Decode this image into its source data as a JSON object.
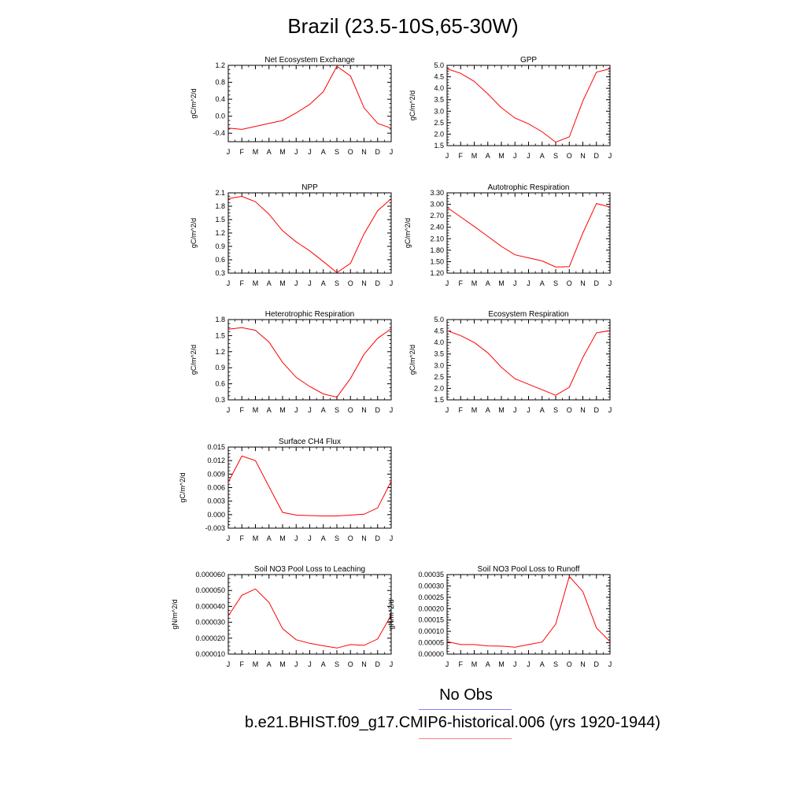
{
  "title": "Brazil (23.5-10S,65-30W)",
  "legend": {
    "obs_label": "No Obs",
    "obs_color": "#8080ff",
    "case_label": "b.e21.BHIST.f09_g17.CMIP6-historical.006 (yrs 1920-1944)",
    "case_color": "#ff8080"
  },
  "line_color": "#ff0000",
  "months": [
    "J",
    "F",
    "M",
    "A",
    "M",
    "J",
    "J",
    "A",
    "S",
    "O",
    "N",
    "D",
    "J"
  ],
  "chart_data": [
    {
      "type": "line",
      "title": "Net Ecosystem Exchange",
      "ylabel": "gC/m^2/d",
      "ylim": [
        -0.6,
        1.2
      ],
      "yticks": [
        -0.4,
        0.0,
        0.4,
        0.8,
        1.2
      ],
      "ytick_labels": [
        "-0.4",
        "0.0",
        "0.4",
        "0.8",
        "1.2"
      ],
      "values": [
        -0.28,
        -0.31,
        -0.24,
        -0.17,
        -0.1,
        0.08,
        0.28,
        0.58,
        1.18,
        0.95,
        0.2,
        -0.17,
        -0.28
      ]
    },
    {
      "type": "line",
      "title": "GPP",
      "ylabel": "gC/m^2/d",
      "ylim": [
        1.5,
        5.0
      ],
      "yticks": [
        1.5,
        2.0,
        2.5,
        3.0,
        3.5,
        4.0,
        4.5,
        5.0
      ],
      "ytick_labels": [
        "1.5",
        "2.0",
        "2.5",
        "3.0",
        "3.5",
        "4.0",
        "4.5",
        "5.0"
      ],
      "values": [
        4.85,
        4.65,
        4.3,
        3.75,
        3.15,
        2.7,
        2.45,
        2.1,
        1.65,
        1.88,
        3.45,
        4.7,
        4.85
      ]
    },
    {
      "type": "line",
      "title": "NPP",
      "ylabel": "gC/m^2/d",
      "ylim": [
        0.3,
        2.1
      ],
      "yticks": [
        0.3,
        0.6,
        0.9,
        1.2,
        1.5,
        1.8,
        2.1
      ],
      "ytick_labels": [
        "0.3",
        "0.6",
        "0.9",
        "1.2",
        "1.5",
        "1.8",
        "2.1"
      ],
      "values": [
        1.97,
        2.02,
        1.9,
        1.62,
        1.25,
        1.0,
        0.8,
        0.56,
        0.31,
        0.52,
        1.18,
        1.7,
        1.97
      ]
    },
    {
      "type": "line",
      "title": "Autotrophic Respiration",
      "ylabel": "gC/m^2/d",
      "ylim": [
        1.2,
        3.3
      ],
      "yticks": [
        1.2,
        1.5,
        1.8,
        2.1,
        2.4,
        2.7,
        3.0,
        3.3
      ],
      "ytick_labels": [
        "1.20",
        "1.50",
        "1.80",
        "2.10",
        "2.40",
        "2.70",
        "3.00",
        "3.30"
      ],
      "values": [
        2.92,
        2.67,
        2.42,
        2.16,
        1.9,
        1.68,
        1.6,
        1.52,
        1.36,
        1.37,
        2.25,
        3.02,
        2.93
      ]
    },
    {
      "type": "line",
      "title": "Heterotrophic Respiration",
      "ylabel": "gC/m^2/d",
      "ylim": [
        0.3,
        1.8
      ],
      "yticks": [
        0.3,
        0.6,
        0.9,
        1.2,
        1.5,
        1.8
      ],
      "ytick_labels": [
        "0.3",
        "0.6",
        "0.9",
        "1.2",
        "1.5",
        "1.8"
      ],
      "values": [
        1.62,
        1.65,
        1.6,
        1.38,
        1.0,
        0.72,
        0.55,
        0.41,
        0.35,
        0.7,
        1.15,
        1.45,
        1.63
      ]
    },
    {
      "type": "line",
      "title": "Ecosystem Respiration",
      "ylabel": "gC/m^2/d",
      "ylim": [
        1.5,
        5.0
      ],
      "yticks": [
        1.5,
        2.0,
        2.5,
        3.0,
        3.5,
        4.0,
        4.5,
        5.0
      ],
      "ytick_labels": [
        "1.5",
        "2.0",
        "2.5",
        "3.0",
        "3.5",
        "4.0",
        "4.5",
        "5.0"
      ],
      "values": [
        4.52,
        4.3,
        4.0,
        3.55,
        2.92,
        2.42,
        2.18,
        1.94,
        1.7,
        2.05,
        3.35,
        4.42,
        4.52
      ]
    },
    {
      "type": "line",
      "title": "Surface CH4 Flux",
      "ylabel": "gC/m^2/d",
      "ylim": [
        -0.003,
        0.015
      ],
      "yticks": [
        -0.003,
        0.0,
        0.003,
        0.006,
        0.009,
        0.012,
        0.015
      ],
      "ytick_labels": [
        "-0.003",
        "0.000",
        "0.003",
        "0.006",
        "0.009",
        "0.012",
        "0.015"
      ],
      "values": [
        0.0072,
        0.013,
        0.012,
        0.0062,
        0.0005,
        -0.0001,
        -0.0002,
        -0.0003,
        -0.0003,
        -0.0001,
        0.0001,
        0.0015,
        0.0074
      ]
    },
    {
      "type": "line",
      "title": "Soil NO3 Pool Loss to Leaching",
      "ylabel": "gN/m^2/d",
      "ylim": [
        1e-05,
        6e-05
      ],
      "yticks": [
        1e-05,
        2e-05,
        3e-05,
        4e-05,
        5e-05,
        6e-05
      ],
      "ytick_labels": [
        "0.000010",
        "0.000020",
        "0.000030",
        "0.000040",
        "0.000050",
        "0.000060"
      ],
      "values": [
        3.4e-05,
        4.7e-05,
        5.1e-05,
        4.25e-05,
        2.6e-05,
        1.9e-05,
        1.68e-05,
        1.52e-05,
        1.38e-05,
        1.6e-05,
        1.55e-05,
        1.95e-05,
        3.45e-05
      ]
    },
    {
      "type": "line",
      "title": "Soil NO3 Pool Loss to Runoff",
      "ylabel": "gN/m^2/d",
      "ylim": [
        0.0,
        0.00035
      ],
      "yticks": [
        0.0,
        5e-05,
        0.0001,
        0.00015,
        0.0002,
        0.00025,
        0.0003,
        0.00035
      ],
      "ytick_labels": [
        "0.00000",
        "0.00005",
        "0.00010",
        "0.00015",
        "0.00020",
        "0.00025",
        "0.00030",
        "0.00035"
      ],
      "values": [
        5.5e-05,
        4.2e-05,
        4.2e-05,
        3.6e-05,
        3.5e-05,
        3e-05,
        4.2e-05,
        5.3e-05,
        0.000132,
        0.000342,
        0.000275,
        0.000115,
        5.5e-05
      ]
    }
  ]
}
